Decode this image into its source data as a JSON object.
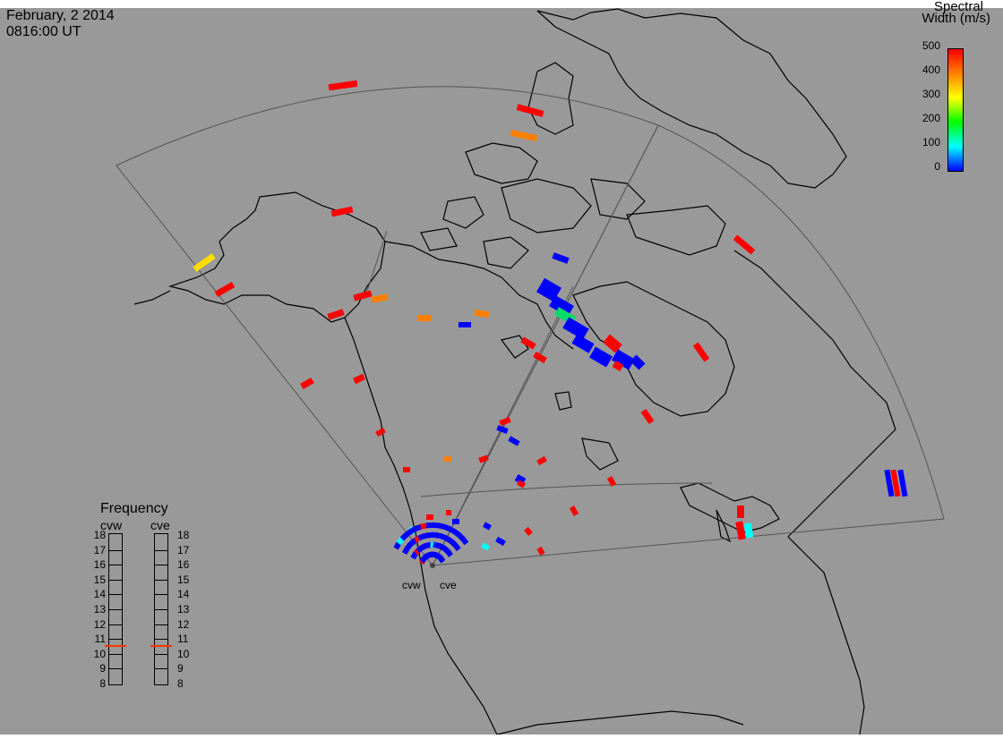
{
  "header": {
    "date": "February, 2 2014",
    "time": "0816:00 UT"
  },
  "colorbar": {
    "title_line1": "Spectral",
    "title_line2": "Width (m/s)",
    "ticks": [
      "500",
      "400",
      "300",
      "200",
      "100",
      "0"
    ],
    "range": [
      0,
      500
    ],
    "colors": [
      "#ff0000",
      "#ff8000",
      "#ffff00",
      "#00ff00",
      "#00ffff",
      "#0000ff"
    ]
  },
  "frequency_panel": {
    "title": "Frequency",
    "radars": [
      {
        "label": "cvw",
        "frequency_mhz": 10.6
      },
      {
        "label": "cve",
        "frequency_mhz": 10.6
      }
    ],
    "ticks": [
      "18",
      "17",
      "16",
      "15",
      "14",
      "13",
      "12",
      "11",
      "10",
      "9",
      "8"
    ]
  },
  "radar_sites": [
    {
      "label": "cvw"
    },
    {
      "label": "cve"
    }
  ],
  "colors": {
    "background": "#999999",
    "coast": "#000000",
    "fov": "#555555",
    "freq_marker": "#ff3300"
  }
}
